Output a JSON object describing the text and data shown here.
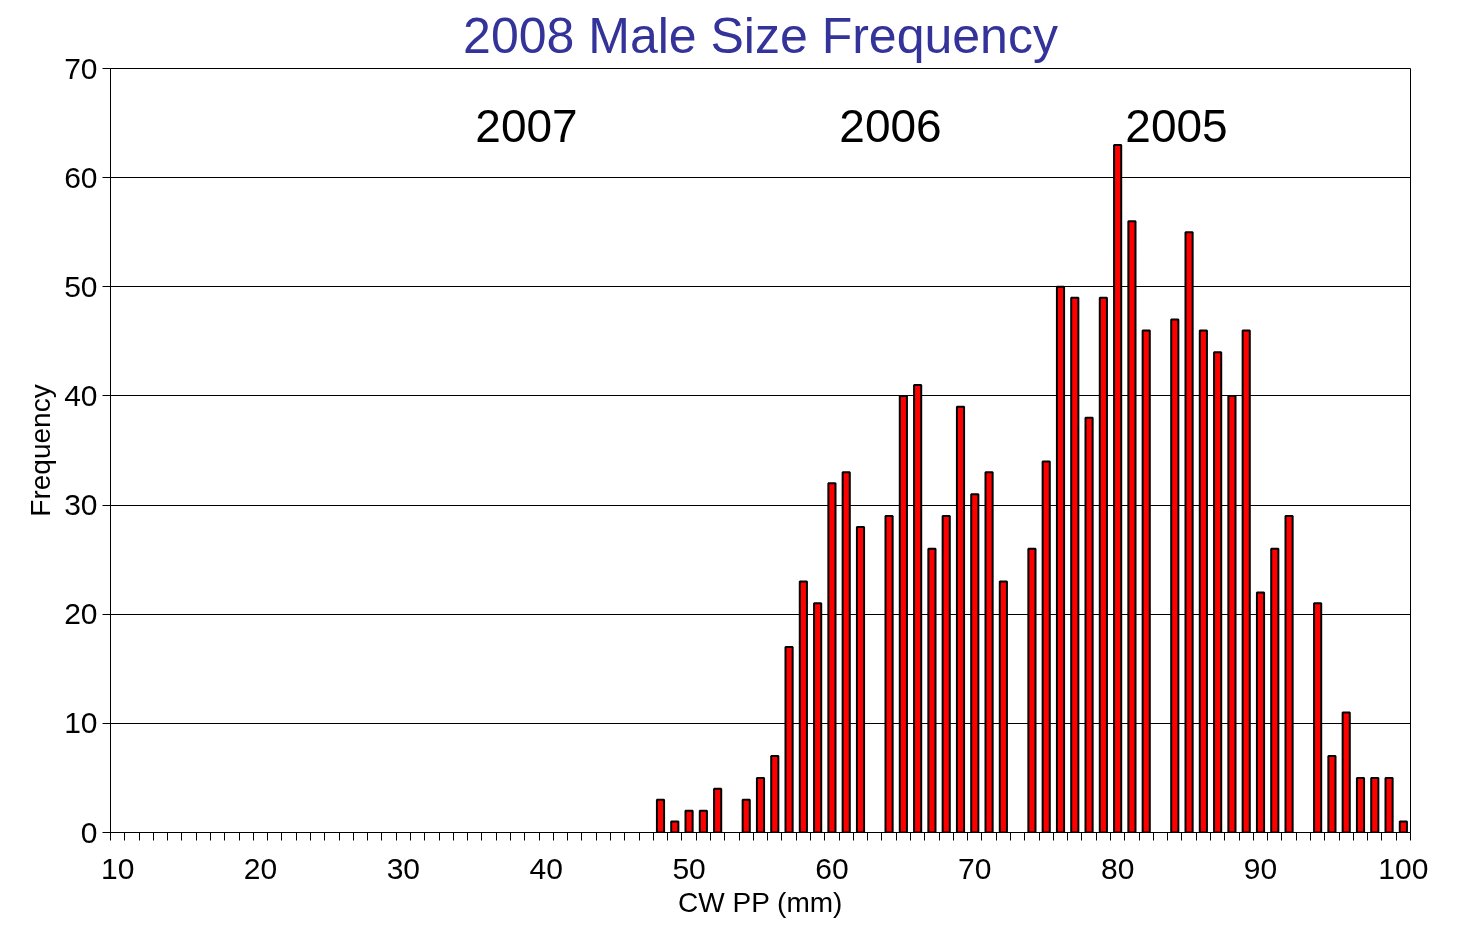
{
  "chart_data": {
    "type": "bar",
    "title": "2008 Male Size Frequency",
    "xlabel": "CW PP (mm)",
    "ylabel": "Frequency",
    "categories": [
      "10",
      null,
      null,
      null,
      null,
      null,
      null,
      null,
      null,
      null,
      "20",
      null,
      null,
      null,
      null,
      null,
      null,
      null,
      null,
      null,
      "30",
      null,
      null,
      null,
      null,
      null,
      null,
      null,
      null,
      null,
      "40",
      null,
      null,
      null,
      null,
      null,
      null,
      null,
      null,
      null,
      "50",
      null,
      null,
      null,
      null,
      null,
      null,
      null,
      null,
      null,
      "60",
      null,
      null,
      null,
      null,
      null,
      null,
      null,
      null,
      null,
      "70",
      null,
      null,
      null,
      null,
      null,
      null,
      null,
      null,
      null,
      "80",
      null,
      null,
      null,
      null,
      null,
      null,
      null,
      null,
      null,
      "90",
      null,
      null,
      null,
      null,
      null,
      null,
      null,
      null,
      null,
      "100"
    ],
    "values": [
      null,
      null,
      null,
      null,
      null,
      null,
      null,
      null,
      null,
      null,
      null,
      null,
      null,
      null,
      null,
      null,
      null,
      null,
      null,
      null,
      null,
      null,
      null,
      null,
      null,
      null,
      null,
      null,
      null,
      null,
      null,
      null,
      null,
      null,
      null,
      null,
      null,
      null,
      3,
      1,
      2,
      2,
      4,
      null,
      3,
      5,
      7,
      17,
      23,
      21,
      32,
      33,
      28,
      null,
      29,
      40,
      41,
      26,
      29,
      39,
      31,
      33,
      23,
      null,
      26,
      34,
      50,
      49,
      38,
      49,
      63,
      56,
      46,
      null,
      47,
      55,
      46,
      44,
      40,
      46,
      22,
      26,
      29,
      null,
      21,
      7,
      11,
      5,
      5,
      5,
      1
    ],
    "color": "#ff0000",
    "ylim": [
      0,
      70
    ],
    "yticks": [
      0,
      10,
      20,
      30,
      40,
      50,
      60,
      70
    ],
    "grid": "y",
    "annotations": [
      "2007",
      "2006",
      "2005"
    ]
  }
}
